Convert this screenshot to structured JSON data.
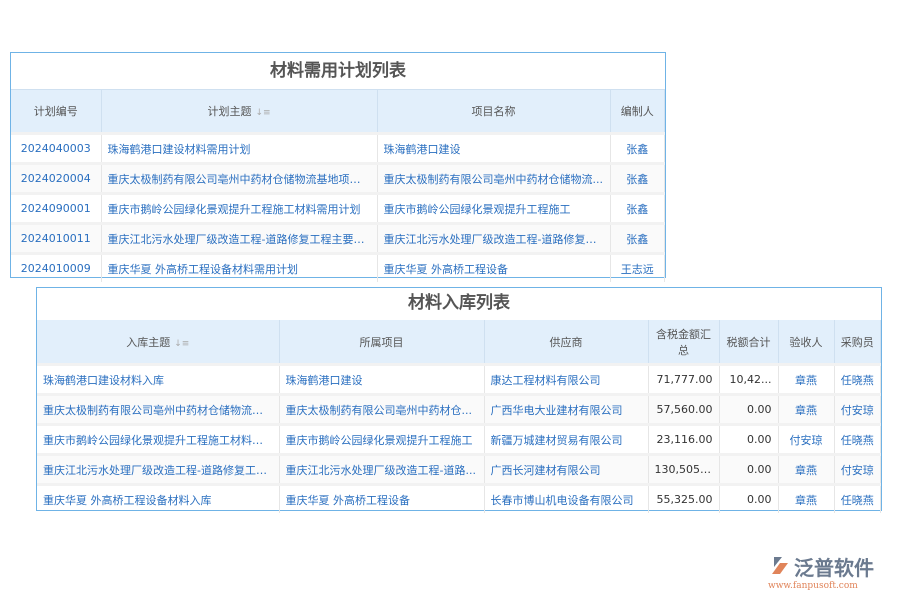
{
  "plan": {
    "title": "材料需用计划列表",
    "headers": [
      "计划编号",
      "计划主题",
      "项目名称",
      "编制人"
    ],
    "sort_icon": "sort-icon",
    "rows": [
      [
        "2024040003",
        "珠海鹤港口建设材料需用计划",
        "珠海鹤港口建设",
        "张鑫"
      ],
      [
        "2024020004",
        "重庆太极制药有限公司亳州中药材仓储物流基地项目...",
        "重庆太极制药有限公司亳州中药材仓储物流...",
        "张鑫"
      ],
      [
        "2024090001",
        "重庆市鹅岭公园绿化景观提升工程施工材料需用计划",
        "重庆市鹅岭公园绿化景观提升工程施工",
        "张鑫"
      ],
      [
        "2024010011",
        "重庆江北污水处理厂级改造工程-道路修复工程主要材料",
        "重庆江北污水处理厂级改造工程-道路修复工程",
        "张鑫"
      ],
      [
        "2024010009",
        "重庆华夏 外高桥工程设备材料需用计划",
        "重庆华夏 外高桥工程设备",
        "王志远"
      ]
    ]
  },
  "stock": {
    "title": "材料入库列表",
    "headers": [
      "入库主题",
      "所属项目",
      "供应商",
      "含税金额汇总",
      "税额合计",
      "验收人",
      "采购员"
    ],
    "rows": [
      [
        "珠海鹤港口建设材料入库",
        "珠海鹤港口建设",
        "康达工程材料有限公司",
        "71,777.00",
        "10,42...",
        "章燕",
        "任晓燕"
      ],
      [
        "重庆太极制药有限公司亳州中药材仓储物流基...",
        "重庆太极制药有限公司亳州中药材仓...",
        "广西华电大业建材有限公司",
        "57,560.00",
        "0.00",
        "章燕",
        "付安琼"
      ],
      [
        "重庆市鹅岭公园绿化景观提升工程施工材料入库",
        "重庆市鹅岭公园绿化景观提升工程施工",
        "新疆万城建材贸易有限公司",
        "23,116.00",
        "0.00",
        "付安琼",
        "任晓燕"
      ],
      [
        "重庆江北污水处理厂级改造工程-道路修复工程...",
        "重庆江北污水处理厂级改造工程-道路...",
        "广西长河建材有限公司",
        "130,505.00",
        "0.00",
        "章燕",
        "付安琼"
      ],
      [
        "重庆华夏 外高桥工程设备材料入库",
        "重庆华夏 外高桥工程设备",
        "长春市博山机电设备有限公司",
        "55,325.00",
        "0.00",
        "章燕",
        "任晓燕"
      ]
    ]
  },
  "logo": {
    "name": "泛普软件",
    "url": "www.fanpusoft.com"
  }
}
